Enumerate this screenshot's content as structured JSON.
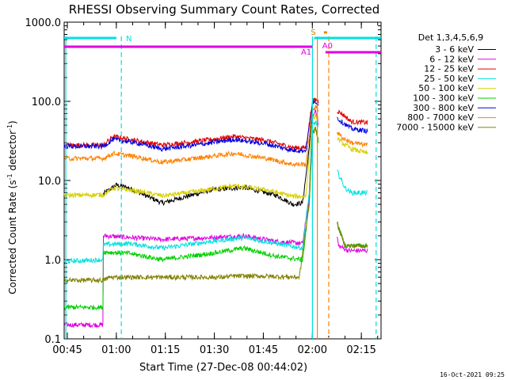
{
  "chart_data": {
    "type": "line",
    "title": "RHESSI Observing Summary Count Rates, Corrected",
    "xlabel": "Start Time (27-Dec-08 00:44:02)",
    "ylabel": "Corrected Count Rate (s^-1 detector^-1)",
    "ylabel_main": "Corrected Count Rate (s",
    "ylabel_exp1": "-1",
    "ylabel_mid": " detector",
    "ylabel_exp2": "-1",
    "ylabel_end": ")",
    "yscale": "log",
    "ylim": [
      0.1,
      1000.0
    ],
    "xlim_minutes": [
      0.0,
      97.0
    ],
    "y_ticks": [
      {
        "value": 0.1,
        "label": "0.1"
      },
      {
        "value": 1.0,
        "label": "1.0"
      },
      {
        "value": 10.0,
        "label": "10.0"
      },
      {
        "value": 100.0,
        "label": "100.0"
      },
      {
        "value": 1000.0,
        "label": "1000.0"
      }
    ],
    "x_ticks": [
      {
        "minutes": 0.97,
        "label": "00:45"
      },
      {
        "minutes": 15.97,
        "label": "01:00"
      },
      {
        "minutes": 30.97,
        "label": "01:15"
      },
      {
        "minutes": 45.97,
        "label": "01:30"
      },
      {
        "minutes": 60.97,
        "label": "01:45"
      },
      {
        "minutes": 75.97,
        "label": "02:00"
      },
      {
        "minutes": 90.97,
        "label": "02:15"
      }
    ],
    "legend_title": "Det 1,3,4,5,6,9",
    "legend_position": "right",
    "series": [
      {
        "name": "3 - 6 keV",
        "color": "#000000",
        "points": [
          [
            12,
            6.8
          ],
          [
            16,
            8.8
          ],
          [
            20,
            8.0
          ],
          [
            30,
            5.2
          ],
          [
            45,
            7.6
          ],
          [
            55,
            8.2
          ],
          [
            65,
            6.5
          ],
          [
            70,
            5.0
          ],
          [
            73,
            5.2
          ],
          [
            75,
            25
          ],
          [
            76,
            90
          ],
          [
            77,
            105
          ]
        ]
      },
      {
        "name": "6 - 12 keV",
        "color": "#e000e0",
        "points": [
          [
            0,
            0.15
          ],
          [
            12,
            0.15
          ],
          [
            12,
            2.0
          ],
          [
            30,
            1.8
          ],
          [
            45,
            1.9
          ],
          [
            55,
            2.0
          ],
          [
            65,
            1.7
          ],
          [
            73,
            1.6
          ],
          [
            75,
            6
          ],
          [
            76,
            60
          ],
          [
            77,
            80
          ],
          [
            84,
            1.5
          ],
          [
            87,
            1.3
          ],
          [
            93,
            1.3
          ]
        ]
      },
      {
        "name": "12 - 25 keV",
        "color": "#e00000",
        "points": [
          [
            0,
            28
          ],
          [
            12,
            28
          ],
          [
            15,
            36
          ],
          [
            22,
            32
          ],
          [
            30,
            28
          ],
          [
            40,
            31
          ],
          [
            52,
            36
          ],
          [
            62,
            32
          ],
          [
            70,
            26
          ],
          [
            74,
            26
          ],
          [
            76,
            100
          ],
          [
            77,
            105
          ],
          [
            85,
            70
          ],
          [
            88,
            55
          ],
          [
            93,
            54
          ]
        ]
      },
      {
        "name": "25 - 50 keV",
        "color": "#00e0e0",
        "points": [
          [
            0,
            0.95
          ],
          [
            12,
            1.0
          ],
          [
            12,
            1.55
          ],
          [
            20,
            1.6
          ],
          [
            30,
            1.4
          ],
          [
            45,
            1.7
          ],
          [
            55,
            1.9
          ],
          [
            65,
            1.6
          ],
          [
            73,
            1.4
          ],
          [
            75,
            7
          ],
          [
            76,
            50
          ],
          [
            77,
            55
          ],
          [
            84,
            12
          ],
          [
            86,
            8
          ],
          [
            88,
            7
          ],
          [
            93,
            7
          ]
        ]
      },
      {
        "name": "50 - 100 keV",
        "color": "#d8d000",
        "points": [
          [
            0,
            6.5
          ],
          [
            12,
            6.6
          ],
          [
            15,
            8.0
          ],
          [
            22,
            7.4
          ],
          [
            30,
            6.4
          ],
          [
            40,
            7.2
          ],
          [
            52,
            8.6
          ],
          [
            62,
            7.6
          ],
          [
            70,
            6.3
          ],
          [
            74,
            6.3
          ],
          [
            76,
            60
          ],
          [
            77,
            65
          ],
          [
            85,
            30
          ],
          [
            88,
            25
          ],
          [
            93,
            22
          ]
        ]
      },
      {
        "name": "100 - 300 keV",
        "color": "#00d000",
        "points": [
          [
            0,
            0.25
          ],
          [
            12,
            0.25
          ],
          [
            12,
            1.25
          ],
          [
            20,
            1.2
          ],
          [
            30,
            1.0
          ],
          [
            45,
            1.2
          ],
          [
            55,
            1.4
          ],
          [
            65,
            1.1
          ],
          [
            73,
            1.0
          ],
          [
            75,
            5
          ],
          [
            76,
            40
          ],
          [
            77,
            45
          ],
          [
            84,
            2.5
          ],
          [
            86,
            1.5
          ],
          [
            93,
            1.5
          ]
        ]
      },
      {
        "name": "300 - 800 keV",
        "color": "#0000e0",
        "points": [
          [
            0,
            27
          ],
          [
            12,
            27
          ],
          [
            15,
            33
          ],
          [
            22,
            30
          ],
          [
            30,
            25
          ],
          [
            40,
            28
          ],
          [
            52,
            33
          ],
          [
            62,
            29
          ],
          [
            70,
            24
          ],
          [
            74,
            24
          ],
          [
            76,
            95
          ],
          [
            77,
            100
          ],
          [
            85,
            55
          ],
          [
            88,
            45
          ],
          [
            93,
            42
          ]
        ]
      },
      {
        "name": "800 - 7000 keV",
        "color": "#ff8000",
        "points": [
          [
            0,
            19
          ],
          [
            12,
            19
          ],
          [
            15,
            22
          ],
          [
            22,
            20
          ],
          [
            30,
            17
          ],
          [
            40,
            19
          ],
          [
            52,
            22
          ],
          [
            62,
            19
          ],
          [
            70,
            16
          ],
          [
            74,
            16
          ],
          [
            76,
            80
          ],
          [
            77,
            85
          ],
          [
            85,
            35
          ],
          [
            88,
            30
          ],
          [
            93,
            28
          ]
        ]
      },
      {
        "name": "7000 - 15000 keV",
        "color": "#808000",
        "points": [
          [
            0,
            0.55
          ],
          [
            12,
            0.55
          ],
          [
            14,
            0.6
          ],
          [
            40,
            0.6
          ],
          [
            48,
            0.6
          ],
          [
            52,
            0.62
          ],
          [
            60,
            0.62
          ],
          [
            72,
            0.6
          ],
          [
            75,
            5
          ],
          [
            76,
            40
          ],
          [
            77,
            45
          ],
          [
            84,
            2.5
          ],
          [
            86,
            1.5
          ],
          [
            93,
            1.5
          ]
        ]
      }
    ],
    "state_bars": [
      {
        "label": "N",
        "color": "#00e0e0",
        "start_min": 0,
        "end_min": 16,
        "level": "upper"
      },
      {
        "label": "",
        "color": "#00e0e0",
        "start_min": 76.5,
        "end_min": 97,
        "level": "upper"
      },
      {
        "label": "",
        "color": "#e000e0",
        "start_min": 0,
        "end_min": 76,
        "level": "lower"
      },
      {
        "label": "",
        "color": "#e000e0",
        "start_min": 80,
        "end_min": 97,
        "level": "lower"
      }
    ],
    "annotations": [
      {
        "text": "S",
        "color": "#d08000",
        "at_min": 75.5
      },
      {
        "text": "A1",
        "color": "#e000e0",
        "at_min": 72.5
      },
      {
        "text": "A0",
        "color": "#e000e0",
        "at_min": 79
      }
    ],
    "vertical_lines": [
      {
        "minutes": 0.5,
        "color": "#00e0e0",
        "style": "solid"
      },
      {
        "minutes": 17.5,
        "color": "#00e0e0",
        "style": "dashed"
      },
      {
        "minutes": 76.0,
        "color": "#00e0e0",
        "style": "solid"
      },
      {
        "minutes": 77.5,
        "color": "#ff8000",
        "style": "solid"
      },
      {
        "minutes": 81.0,
        "color": "#ff8000",
        "style": "dashed"
      },
      {
        "minutes": 95.5,
        "color": "#00e0e0",
        "style": "dashed"
      }
    ],
    "footer_date": "16-Oct-2021 09:25"
  }
}
